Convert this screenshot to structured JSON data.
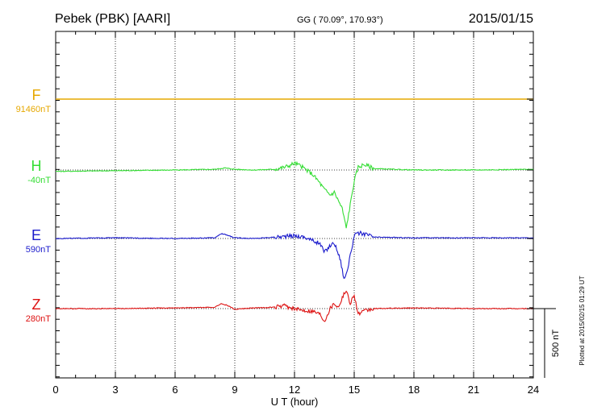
{
  "header": {
    "station": "Pebek (PBK)  [AARI]",
    "coords": "GG ( 70.09°, 170.93°)",
    "date": "2015/01/15"
  },
  "side_note": "Plotted at 2015/02/15 01:29 UT",
  "colors": {
    "F": "#e6a800",
    "H": "#33dd33",
    "E": "#1a1acc",
    "Z": "#dd1111"
  },
  "chart_data": {
    "type": "line",
    "title": "",
    "xlabel": "U T (hour)",
    "xlim": [
      0,
      24
    ],
    "xticks": [
      0,
      3,
      6,
      9,
      12,
      15,
      18,
      21,
      24
    ],
    "grid": true,
    "scale_bar": {
      "label": "500 nT",
      "value_nT": 500
    },
    "series": [
      {
        "name": "F",
        "baseline": "91460nT",
        "color": "#e6a800",
        "x": [
          0,
          24
        ],
        "y_nT": [
          0,
          0
        ]
      },
      {
        "name": "H",
        "baseline": "-40nT",
        "color": "#33dd33",
        "x": [
          0,
          3,
          6,
          8,
          8.5,
          9,
          10,
          11,
          11.5,
          11.8,
          12,
          12.3,
          12.6,
          12.9,
          13.2,
          13.5,
          13.8,
          14.0,
          14.2,
          14.4,
          14.6,
          14.8,
          15.0,
          15.2,
          15.5,
          16,
          18,
          21,
          24
        ],
        "y_nT": [
          -10,
          -5,
          0,
          5,
          15,
          5,
          0,
          5,
          20,
          35,
          50,
          30,
          0,
          -30,
          -80,
          -140,
          -180,
          -160,
          -220,
          -280,
          -420,
          -250,
          -80,
          20,
          40,
          10,
          0,
          0,
          5
        ]
      },
      {
        "name": "E",
        "baseline": "590nT",
        "color": "#1a1acc",
        "x": [
          0,
          3,
          6,
          8,
          8.3,
          8.6,
          9,
          10,
          11,
          12,
          12.5,
          13,
          13.3,
          13.5,
          13.8,
          14.0,
          14.3,
          14.5,
          14.7,
          15.0,
          15.3,
          15.6,
          16,
          18,
          21,
          24
        ],
        "y_nT": [
          0,
          5,
          0,
          5,
          35,
          25,
          5,
          0,
          10,
          20,
          10,
          -20,
          -40,
          -100,
          -50,
          -30,
          -150,
          -300,
          -200,
          20,
          40,
          30,
          10,
          5,
          5,
          5
        ]
      },
      {
        "name": "Z",
        "baseline": "280nT",
        "color": "#dd1111",
        "x": [
          0,
          3,
          6,
          8,
          8.3,
          8.6,
          9,
          10,
          11,
          11.5,
          12,
          12.5,
          13,
          13.3,
          13.5,
          13.8,
          14.0,
          14.2,
          14.4,
          14.6,
          14.8,
          15.0,
          15.2,
          15.5,
          16,
          18,
          21,
          24
        ],
        "y_nT": [
          0,
          0,
          5,
          10,
          35,
          25,
          -5,
          5,
          10,
          20,
          -5,
          -10,
          -20,
          -40,
          -90,
          5,
          40,
          10,
          80,
          130,
          40,
          100,
          -40,
          -20,
          0,
          5,
          0,
          0
        ]
      }
    ]
  }
}
